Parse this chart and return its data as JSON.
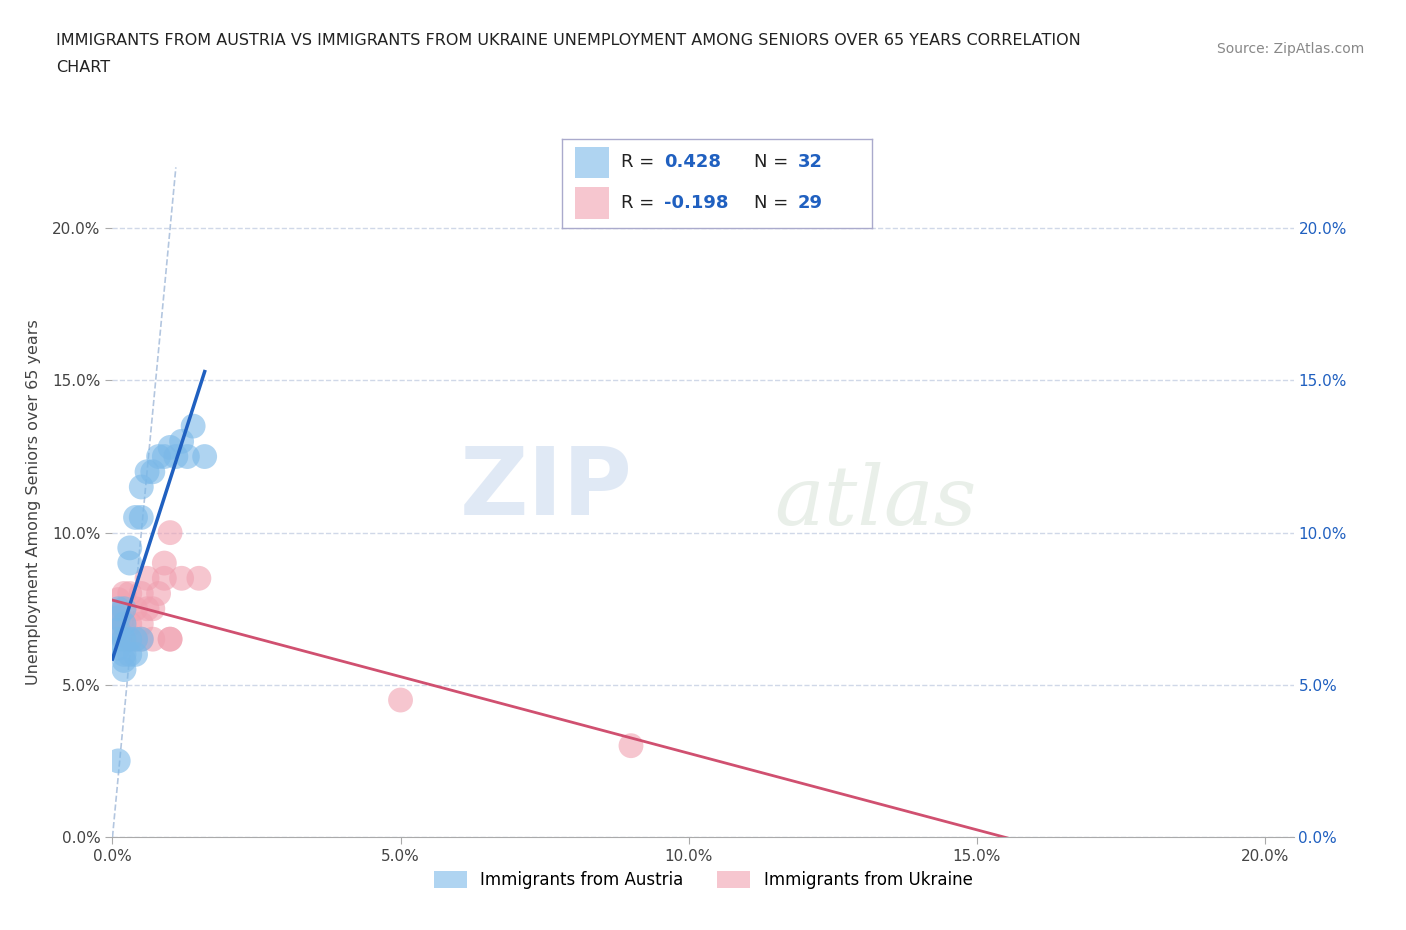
{
  "title_line1": "IMMIGRANTS FROM AUSTRIA VS IMMIGRANTS FROM UKRAINE UNEMPLOYMENT AMONG SENIORS OVER 65 YEARS CORRELATION",
  "title_line2": "CHART",
  "source": "Source: ZipAtlas.com",
  "ylabel": "Unemployment Among Seniors over 65 years",
  "xlim": [
    0.0,
    0.205
  ],
  "ylim": [
    0.0,
    0.22
  ],
  "xticks": [
    0.0,
    0.05,
    0.1,
    0.15,
    0.2
  ],
  "yticks": [
    0.0,
    0.05,
    0.1,
    0.15,
    0.2
  ],
  "xticklabels": [
    "0.0%",
    "5.0%",
    "10.0%",
    "15.0%",
    "20.0%"
  ],
  "yticklabels": [
    "0.0%",
    "5.0%",
    "10.0%",
    "15.0%",
    "20.0%"
  ],
  "austria_color": "#7ab8e8",
  "ukraine_color": "#f0a0b0",
  "austria_line_color": "#2060c0",
  "ukraine_line_color": "#d05070",
  "austria_R": "0.428",
  "austria_N": "32",
  "ukraine_R": "-0.198",
  "ukraine_N": "29",
  "austria_scatter_x": [
    0.001,
    0.001,
    0.001,
    0.001,
    0.001,
    0.002,
    0.002,
    0.002,
    0.002,
    0.002,
    0.002,
    0.003,
    0.003,
    0.003,
    0.003,
    0.004,
    0.004,
    0.004,
    0.005,
    0.005,
    0.005,
    0.006,
    0.007,
    0.008,
    0.009,
    0.01,
    0.011,
    0.012,
    0.013,
    0.014,
    0.016,
    0.001
  ],
  "austria_scatter_y": [
    0.062,
    0.065,
    0.068,
    0.072,
    0.075,
    0.055,
    0.058,
    0.06,
    0.065,
    0.07,
    0.075,
    0.06,
    0.065,
    0.09,
    0.095,
    0.06,
    0.065,
    0.105,
    0.065,
    0.105,
    0.115,
    0.12,
    0.12,
    0.125,
    0.125,
    0.128,
    0.125,
    0.13,
    0.125,
    0.135,
    0.125,
    0.025
  ],
  "ukraine_scatter_x": [
    0.001,
    0.001,
    0.001,
    0.002,
    0.002,
    0.002,
    0.002,
    0.003,
    0.003,
    0.003,
    0.004,
    0.004,
    0.005,
    0.005,
    0.005,
    0.006,
    0.006,
    0.007,
    0.007,
    0.008,
    0.009,
    0.009,
    0.01,
    0.01,
    0.01,
    0.012,
    0.015,
    0.05,
    0.09
  ],
  "ukraine_scatter_y": [
    0.07,
    0.072,
    0.078,
    0.065,
    0.07,
    0.075,
    0.08,
    0.065,
    0.07,
    0.08,
    0.065,
    0.075,
    0.065,
    0.07,
    0.08,
    0.075,
    0.085,
    0.065,
    0.075,
    0.08,
    0.085,
    0.09,
    0.065,
    0.065,
    0.1,
    0.085,
    0.085,
    0.045,
    0.03
  ],
  "watermark_zip": "ZIP",
  "watermark_atlas": "atlas",
  "background_color": "#ffffff",
  "grid_color": "#d0d8e8",
  "title_color": "#222222",
  "axis_label_color": "#444444",
  "tick_label_color": "#444444",
  "right_tick_color": "#2060c0",
  "source_color": "#888888",
  "legend_label_color": "#222222",
  "legend_R_color": "#2060c0",
  "legend_N_color": "#2060c0",
  "legend_border_color": "#aaaacc"
}
